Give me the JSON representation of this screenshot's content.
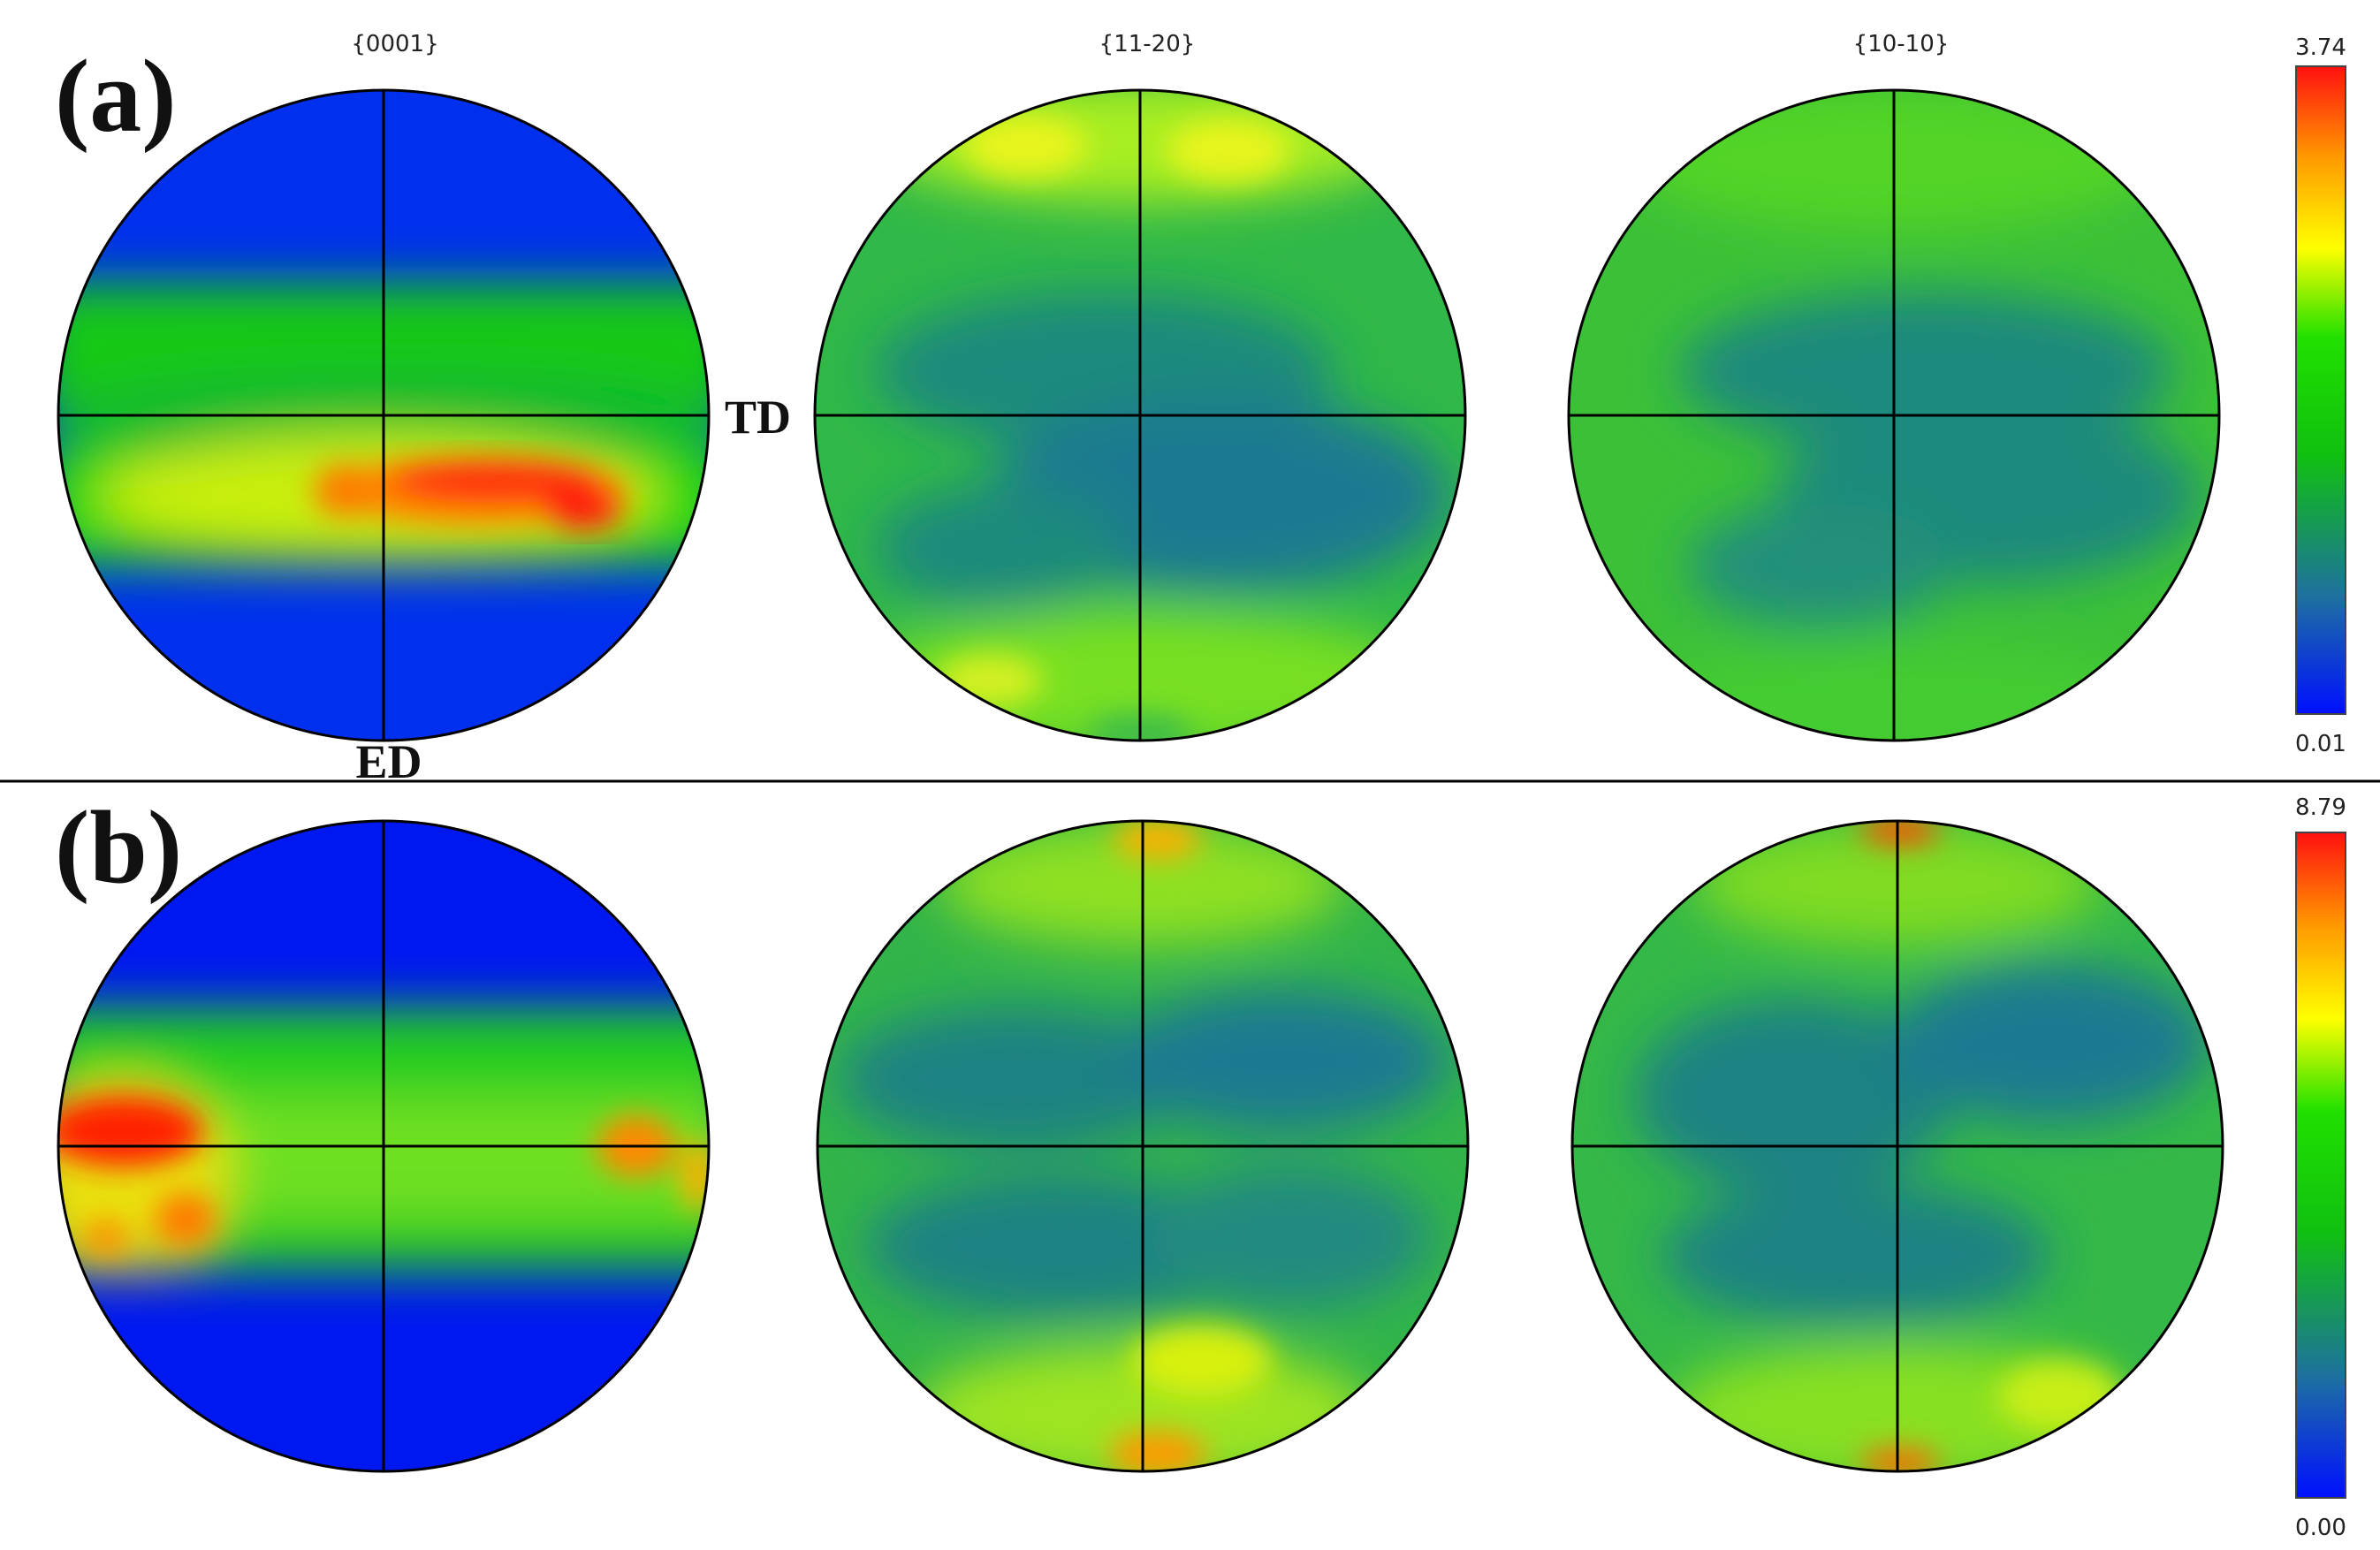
{
  "panels": [
    {
      "label": "(a)",
      "planes": [
        "{0001}",
        "{11-20}",
        "{10-10}"
      ],
      "direction_labels": {
        "transverse": "TD",
        "extrusion": "ED"
      },
      "colorbar": {
        "max": "3.74",
        "min": "0.01"
      }
    },
    {
      "label": "(b)",
      "planes": [
        "",
        "",
        ""
      ],
      "colorbar": {
        "max": "8.79",
        "min": "0.00"
      }
    }
  ],
  "colormap": [
    "#0000ff",
    "#1e73a8",
    "#00dd00",
    "#ffff00",
    "#ff8800",
    "#ff0000"
  ],
  "background_color": "#0030ff",
  "line_color": "#000000"
}
